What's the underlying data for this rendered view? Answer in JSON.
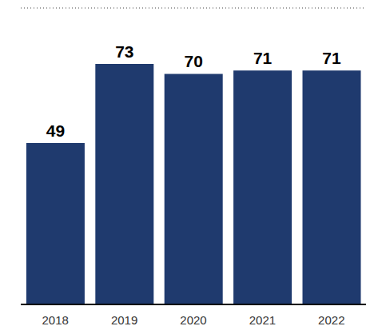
{
  "chart_data": {
    "type": "bar",
    "categories": [
      "2018",
      "2019",
      "2020",
      "2021",
      "2022"
    ],
    "values": [
      49,
      73,
      70,
      71,
      71
    ],
    "color": "#1f3a6e",
    "ylim": [
      0,
      90
    ],
    "yticks": [
      0,
      10,
      20,
      30,
      40,
      50,
      60,
      70,
      80,
      90
    ],
    "grid": true,
    "data_labels": true,
    "tick_labels": "x"
  }
}
